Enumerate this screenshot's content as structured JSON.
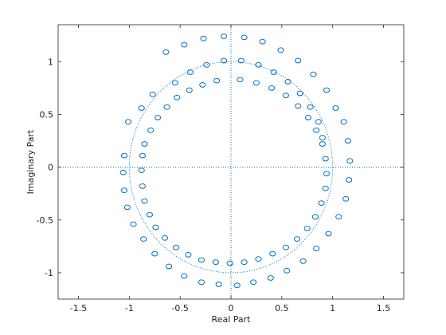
{
  "colors": {
    "marker": "#0072BD",
    "unit_circle": "#0072BD",
    "axes": "#262626",
    "background": "#ffffff"
  },
  "chart_data": {
    "type": "scatter",
    "title": "",
    "xlabel": "Real Part",
    "ylabel": "Imaginary Part",
    "xlim": [
      -1.7,
      1.7
    ],
    "ylim": [
      -1.25,
      1.35
    ],
    "xticks": [
      -1.5,
      -1,
      -0.5,
      0,
      0.5,
      1,
      1.5
    ],
    "xtick_labels": [
      "-1.5",
      "-1",
      "-0.5",
      "0",
      "0.5",
      "1",
      "1.5"
    ],
    "yticks": [
      -1,
      -0.5,
      0,
      0.5,
      1
    ],
    "ytick_labels": [
      "-1",
      "-0.5",
      "0",
      "0.5",
      "1"
    ],
    "grid": false,
    "marker": "circle-open",
    "reference": [
      "unit-circle-dotted",
      "real-axis-dotted",
      "imaginary-axis-dotted"
    ],
    "series": [
      {
        "style": "outer-ring",
        "points": [
          [
            0.13,
            1.23
          ],
          [
            0.31,
            1.19
          ],
          [
            0.49,
            1.11
          ],
          [
            0.66,
            1.01
          ],
          [
            0.81,
            0.88
          ],
          [
            0.94,
            0.73
          ],
          [
            1.03,
            0.56
          ],
          [
            1.11,
            0.43
          ],
          [
            1.15,
            0.25
          ],
          [
            1.17,
            0.06
          ],
          [
            1.16,
            -0.12
          ],
          [
            1.13,
            -0.3
          ],
          [
            1.06,
            -0.47
          ],
          [
            0.96,
            -0.63
          ],
          [
            0.84,
            -0.77
          ],
          [
            0.71,
            -0.89
          ],
          [
            0.55,
            -0.98
          ],
          [
            0.39,
            -1.05
          ],
          [
            0.22,
            -1.09
          ],
          [
            0.06,
            -1.12
          ],
          [
            -0.12,
            -1.11
          ],
          [
            -0.29,
            -1.09
          ],
          [
            -0.46,
            -1.03
          ],
          [
            -0.61,
            -0.94
          ],
          [
            -0.75,
            -0.82
          ],
          [
            -0.86,
            -0.68
          ],
          [
            -0.96,
            -0.54
          ],
          [
            -1.02,
            -0.38
          ],
          [
            -1.05,
            -0.22
          ],
          [
            -1.06,
            -0.05
          ],
          [
            -1.05,
            0.11
          ],
          [
            -1.01,
            0.43
          ],
          [
            -0.88,
            0.56
          ],
          [
            -0.77,
            0.69
          ],
          [
            -0.64,
            1.09
          ],
          [
            -0.46,
            1.16
          ],
          [
            -0.27,
            1.22
          ],
          [
            -0.07,
            1.24
          ]
        ]
      },
      {
        "style": "inner-ring",
        "points": [
          [
            0.09,
            0.83
          ],
          [
            0.25,
            0.8
          ],
          [
            0.4,
            0.75
          ],
          [
            0.54,
            0.68
          ],
          [
            0.66,
            0.58
          ],
          [
            0.76,
            0.47
          ],
          [
            0.84,
            0.35
          ],
          [
            0.9,
            0.22
          ],
          [
            0.93,
            0.08
          ],
          [
            0.94,
            -0.06
          ],
          [
            0.93,
            -0.2
          ],
          [
            0.89,
            -0.34
          ],
          [
            0.83,
            -0.47
          ],
          [
            0.75,
            -0.58
          ],
          [
            0.65,
            -0.68
          ],
          [
            0.54,
            -0.76
          ],
          [
            0.41,
            -0.82
          ],
          [
            0.27,
            -0.87
          ],
          [
            0.13,
            -0.9
          ],
          [
            -0.01,
            -0.91
          ],
          [
            -0.15,
            -0.9
          ],
          [
            -0.29,
            -0.88
          ],
          [
            -0.42,
            -0.83
          ],
          [
            -0.54,
            -0.76
          ],
          [
            -0.65,
            -0.67
          ],
          [
            -0.74,
            -0.57
          ],
          [
            -0.8,
            -0.45
          ],
          [
            -0.85,
            -0.32
          ],
          [
            -0.87,
            -0.18
          ],
          [
            -0.88,
            -0.03
          ],
          [
            -0.87,
            0.11
          ],
          [
            -0.85,
            0.22
          ],
          [
            -0.79,
            0.35
          ],
          [
            -0.72,
            0.47
          ],
          [
            -0.63,
            0.57
          ],
          [
            -0.53,
            0.66
          ],
          [
            -0.41,
            0.73
          ],
          [
            -0.28,
            0.78
          ],
          [
            -0.14,
            0.82
          ]
        ]
      },
      {
        "style": "middle-arc",
        "points": [
          [
            -0.55,
            0.8
          ],
          [
            -0.4,
            0.9
          ],
          [
            -0.24,
            0.97
          ],
          [
            -0.07,
            1.01
          ],
          [
            0.1,
            1.01
          ],
          [
            0.27,
            0.97
          ],
          [
            0.42,
            0.9
          ],
          [
            0.56,
            0.81
          ],
          [
            0.68,
            0.7
          ],
          [
            0.78,
            0.57
          ],
          [
            0.86,
            0.43
          ],
          [
            0.9,
            0.28
          ]
        ]
      }
    ]
  }
}
